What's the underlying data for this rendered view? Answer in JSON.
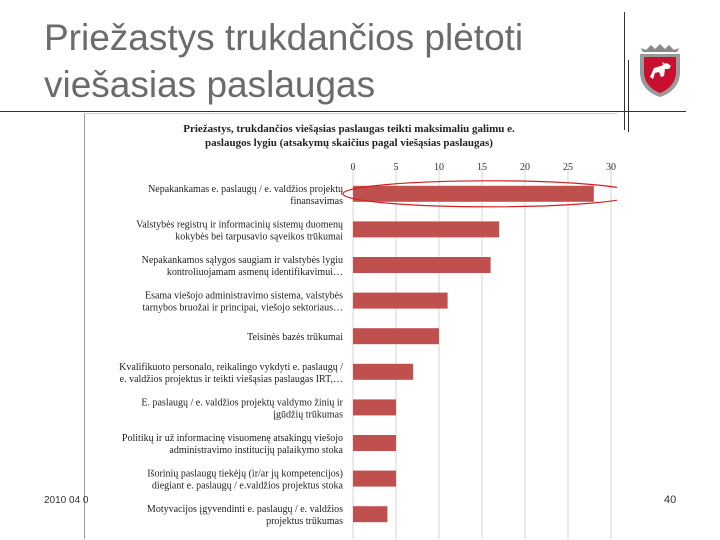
{
  "slide": {
    "title_line1": "Priežastys trukdančios plėtoti",
    "title_line2": "viešasias paslaugas",
    "footer_date": "2010 04 0",
    "page_number": "40"
  },
  "colors": {
    "bar": "#c0504d",
    "title": "#6b6b6b",
    "highlight": "#d62020"
  },
  "chart_data": {
    "type": "bar",
    "orientation": "horizontal",
    "title_line1": "Priežastys, trukdančios viešąsias paslaugas teikti maksimaliu galimu e.",
    "title_line2": "paslaugos lygiu (atsakymų skaičius pagal viešąsias paslaugas)",
    "xlim": [
      0,
      30
    ],
    "ticks": [
      "0",
      "5",
      "10",
      "15",
      "20",
      "25",
      "30"
    ],
    "highlighted_index": 0,
    "categories": [
      [
        "Nepakankamas e. paslaugų / e. valdžios projektų",
        "finansavimas"
      ],
      [
        "Valstybės registrų ir informacinių sistemų duomenų",
        "kokybės bei tarpusavio sąveikos trūkumai"
      ],
      [
        "Nepakankamos sąlygos saugiam ir valstybės lygiu",
        "kontroliuojamam asmenų identifikavimui…"
      ],
      [
        "Esama viešojo administravimo sistema, valstybės",
        "tarnybos bruožai ir principai, viešojo sektoriaus…"
      ],
      [
        "Teisinės bazės trūkumai"
      ],
      [
        "Kvalifikuoto personalo, reikalingo vykdyti e. paslaugų /",
        "e. valdžios projektus ir teikti viešąsias paslaugas IRT,…"
      ],
      [
        "E. paslaugų / e. valdžios projektų valdymo žinių ir",
        "įgūdžių trūkumas"
      ],
      [
        "Politikų ir už informacinę visuomenę atsakingų viešojo",
        "administravimo institucijų palaikymo stoka"
      ],
      [
        "Išorinių paslaugų tiekėjų (ir/ar jų kompetencijos)",
        "diegiant e. paslaugų / e.valdžios projektus stoka"
      ],
      [
        "Motyvacijos įgyvendinti e. paslaugų / e. valdžios",
        "projektus trūkumas"
      ]
    ],
    "values": [
      28,
      17,
      16,
      11,
      10,
      7,
      5,
      5,
      5,
      4
    ]
  }
}
